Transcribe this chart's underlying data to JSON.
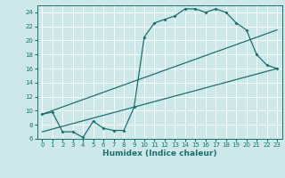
{
  "background_color": "#cce8e8",
  "grid_color": "#ffffff",
  "line_color": "#1a7070",
  "line1_x": [
    0,
    1,
    2,
    3,
    4,
    5,
    6,
    7,
    8,
    9,
    10,
    11,
    12,
    13,
    14,
    15,
    16,
    17,
    18,
    19,
    20,
    21,
    22,
    23
  ],
  "line1_y": [
    9.5,
    9.8,
    7.0,
    7.0,
    6.2,
    8.5,
    7.5,
    7.2,
    7.2,
    10.5,
    20.5,
    22.5,
    23.0,
    23.5,
    24.5,
    24.5,
    24.0,
    24.5,
    24.0,
    22.5,
    21.5,
    18.0,
    16.5,
    16.0
  ],
  "line2_x": [
    0,
    23
  ],
  "line2_y": [
    9.5,
    21.5
  ],
  "line3_x": [
    0,
    23
  ],
  "line3_y": [
    7.0,
    16.0
  ],
  "xlim": [
    -0.5,
    23.5
  ],
  "ylim": [
    6,
    25
  ],
  "yticks": [
    6,
    8,
    10,
    12,
    14,
    16,
    18,
    20,
    22,
    24
  ],
  "xticks": [
    0,
    1,
    2,
    3,
    4,
    5,
    6,
    7,
    8,
    9,
    10,
    11,
    12,
    13,
    14,
    15,
    16,
    17,
    18,
    19,
    20,
    21,
    22,
    23
  ],
  "xlabel": "Humidex (Indice chaleur)",
  "xlabel_fontsize": 6.5,
  "tick_fontsize": 5.0,
  "marker_size": 2.0,
  "line_width": 0.9
}
